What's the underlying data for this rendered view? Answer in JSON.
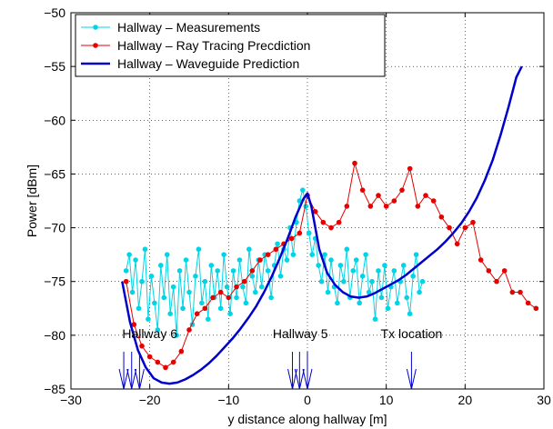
{
  "chart_data": {
    "type": "line",
    "title": "",
    "xlabel": "y distance along hallway [m]",
    "ylabel": "Power [dBm]",
    "xlim": [
      -30,
      30
    ],
    "ylim": [
      -85,
      -50
    ],
    "xticks": [
      -30,
      -20,
      -10,
      0,
      10,
      20,
      30
    ],
    "yticks": [
      -85,
      -80,
      -75,
      -70,
      -65,
      -60,
      -55,
      -50
    ],
    "grid": true,
    "legend_position": "top-left",
    "series": [
      {
        "name": "Hallway – Measurements",
        "color": "#00d5e6",
        "marker": "dot",
        "x": [
          -23.0,
          -22.6,
          -22.2,
          -21.8,
          -21.4,
          -21.0,
          -20.6,
          -20.2,
          -19.8,
          -19.4,
          -19.0,
          -18.6,
          -18.2,
          -17.8,
          -17.4,
          -17.0,
          -16.6,
          -16.2,
          -15.8,
          -15.4,
          -15.0,
          -14.6,
          -14.2,
          -13.8,
          -13.4,
          -13.0,
          -12.6,
          -12.2,
          -11.8,
          -11.4,
          -11.0,
          -10.6,
          -10.2,
          -9.8,
          -9.4,
          -9.0,
          -8.6,
          -8.2,
          -7.8,
          -7.4,
          -7.0,
          -6.6,
          -6.2,
          -5.8,
          -5.4,
          -5.0,
          -4.6,
          -4.2,
          -3.8,
          -3.4,
          -3.0,
          -2.6,
          -2.2,
          -1.8,
          -1.4,
          -1.0,
          -0.6,
          -0.2,
          0.2,
          0.6,
          1.0,
          1.4,
          1.8,
          2.2,
          2.6,
          3.0,
          3.4,
          3.8,
          4.2,
          4.6,
          5.0,
          5.4,
          5.8,
          6.2,
          6.6,
          7.0,
          7.4,
          7.8,
          8.2,
          8.6,
          9.0,
          9.4,
          9.8,
          10.2,
          10.6,
          11.0,
          11.4,
          11.8,
          12.2,
          12.6,
          13.0,
          13.4,
          13.8,
          14.2,
          14.6
        ],
        "y": [
          -74.0,
          -72.5,
          -76.0,
          -73.0,
          -77.5,
          -75.0,
          -72.0,
          -78.5,
          -74.5,
          -77.0,
          -79.5,
          -73.5,
          -76.5,
          -72.5,
          -78.0,
          -75.5,
          -80.0,
          -74.0,
          -77.5,
          -73.0,
          -76.0,
          -79.0,
          -74.5,
          -72.0,
          -77.0,
          -75.0,
          -78.5,
          -73.5,
          -76.5,
          -74.0,
          -77.5,
          -72.5,
          -75.5,
          -78.0,
          -74.0,
          -76.5,
          -73.0,
          -75.5,
          -77.0,
          -72.0,
          -74.5,
          -76.0,
          -73.0,
          -75.5,
          -72.5,
          -74.0,
          -76.5,
          -73.5,
          -71.5,
          -74.5,
          -72.0,
          -73.0,
          -70.0,
          -72.5,
          -69.5,
          -67.5,
          -66.5,
          -68.0,
          -70.5,
          -72.5,
          -71.0,
          -73.5,
          -75.0,
          -72.5,
          -76.0,
          -73.0,
          -75.5,
          -77.0,
          -73.5,
          -75.0,
          -72.0,
          -76.5,
          -74.0,
          -73.0,
          -77.0,
          -74.5,
          -72.5,
          -76.0,
          -75.0,
          -78.5,
          -74.0,
          -76.5,
          -73.5,
          -77.5,
          -75.5,
          -74.0,
          -77.0,
          -75.0,
          -73.5,
          -76.5,
          -78.0,
          -74.5,
          -72.5,
          -76.0,
          -75.0
        ]
      },
      {
        "name": "Hallway – Ray Tracing Precdiction",
        "color": "#e60000",
        "marker": "dot",
        "x": [
          -23.0,
          -22.0,
          -21.0,
          -20.0,
          -19.0,
          -18.0,
          -17.0,
          -16.0,
          -15.0,
          -14.0,
          -13.0,
          -12.0,
          -11.0,
          -10.0,
          -9.0,
          -8.0,
          -7.0,
          -6.0,
          -5.0,
          -4.0,
          -3.0,
          -2.0,
          -1.0,
          0.0,
          1.0,
          2.0,
          3.0,
          4.0,
          5.0,
          6.0,
          7.0,
          8.0,
          9.0,
          10.0,
          11.0,
          12.0,
          13.0,
          14.0,
          15.0,
          16.0,
          17.0,
          18.0,
          19.0,
          20.0,
          21.0,
          22.0,
          23.0,
          24.0,
          25.0,
          26.0,
          27.0,
          28.0,
          29.0
        ],
        "y": [
          -75.0,
          -79.0,
          -81.0,
          -82.0,
          -82.5,
          -83.0,
          -82.5,
          -81.5,
          -79.5,
          -78.0,
          -77.5,
          -76.5,
          -76.0,
          -76.5,
          -75.5,
          -75.0,
          -74.0,
          -73.0,
          -72.5,
          -72.0,
          -71.5,
          -71.0,
          -70.5,
          -67.0,
          -68.5,
          -69.5,
          -70.0,
          -69.5,
          -68.0,
          -64.0,
          -66.5,
          -68.0,
          -67.0,
          -68.0,
          -67.5,
          -66.5,
          -64.5,
          -68.0,
          -67.0,
          -67.5,
          -69.0,
          -70.0,
          -71.5,
          -70.0,
          -69.5,
          -73.0,
          -74.0,
          -75.0,
          -74.0,
          -76.0,
          -76.0,
          -77.0,
          -77.5
        ]
      },
      {
        "name": "Hallway – Waveguide Prediction",
        "color": "#0000cc",
        "marker": "none",
        "x": [
          -23.5,
          -22.5,
          -21.5,
          -20.5,
          -19.5,
          -18.5,
          -17.5,
          -16.5,
          -15.5,
          -14.5,
          -13.5,
          -12.5,
          -11.5,
          -10.5,
          -9.5,
          -8.5,
          -7.5,
          -6.5,
          -5.5,
          -4.5,
          -3.5,
          -2.5,
          -1.5,
          -0.5,
          0.0,
          0.5,
          1.0,
          1.5,
          2.5,
          3.5,
          4.5,
          5.5,
          6.5,
          7.5,
          8.5,
          9.5,
          10.5,
          11.5,
          12.5,
          13.5,
          14.5,
          15.5,
          16.5,
          17.5,
          18.5,
          19.5,
          20.5,
          21.5,
          22.5,
          23.5,
          24.5,
          25.5,
          26.5,
          27.2
        ],
        "y": [
          -75.0,
          -78.8,
          -81.4,
          -83.0,
          -84.0,
          -84.4,
          -84.5,
          -84.4,
          -84.1,
          -83.7,
          -83.2,
          -82.6,
          -81.9,
          -81.1,
          -80.3,
          -79.4,
          -78.4,
          -77.3,
          -76.0,
          -74.5,
          -72.8,
          -71.0,
          -69.0,
          -67.3,
          -66.8,
          -68.0,
          -70.0,
          -72.0,
          -74.2,
          -75.3,
          -76.0,
          -76.4,
          -76.5,
          -76.4,
          -76.1,
          -75.7,
          -75.3,
          -74.9,
          -74.4,
          -73.8,
          -73.2,
          -72.6,
          -72.0,
          -71.3,
          -70.5,
          -69.6,
          -68.5,
          -67.2,
          -65.6,
          -63.7,
          -61.4,
          -58.8,
          -56.0,
          -55.0
        ]
      }
    ],
    "annotations": [
      {
        "text": "Hallway 6",
        "arrows_x": [
          -23.3,
          -22.3,
          -21.3
        ],
        "label_x": -20.0
      },
      {
        "text": "Hallway 5",
        "arrows_x": [
          -1.9,
          -1.0,
          0.0
        ],
        "label_x": -0.9
      },
      {
        "text": "Tx location",
        "arrows_x": [
          13.2
        ],
        "label_x": 13.2
      }
    ]
  }
}
